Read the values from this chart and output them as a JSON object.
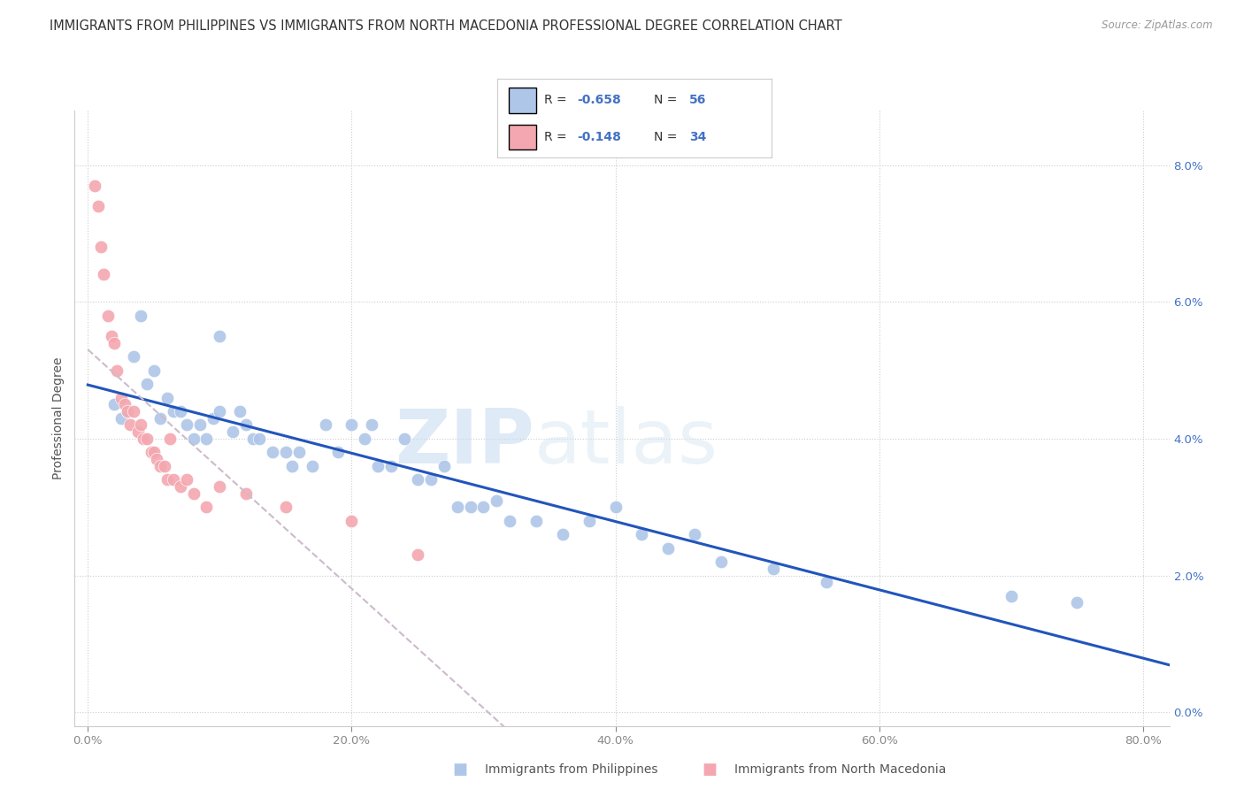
{
  "title": "IMMIGRANTS FROM PHILIPPINES VS IMMIGRANTS FROM NORTH MACEDONIA PROFESSIONAL DEGREE CORRELATION CHART",
  "source": "Source: ZipAtlas.com",
  "xlabel_labels": [
    "0.0%",
    "20.0%",
    "40.0%",
    "60.0%",
    "80.0%"
  ],
  "xlabel_values": [
    0.0,
    0.2,
    0.4,
    0.6,
    0.8
  ],
  "ylabel_labels": [
    "0.0%",
    "2.0%",
    "4.0%",
    "6.0%",
    "8.0%"
  ],
  "ylabel_values": [
    0.0,
    0.02,
    0.04,
    0.06,
    0.08
  ],
  "xlim": [
    -0.01,
    0.82
  ],
  "ylim": [
    -0.002,
    0.088
  ],
  "philippines_x": [
    0.02,
    0.025,
    0.03,
    0.035,
    0.04,
    0.045,
    0.05,
    0.055,
    0.06,
    0.065,
    0.07,
    0.075,
    0.08,
    0.085,
    0.09,
    0.095,
    0.1,
    0.1,
    0.11,
    0.115,
    0.12,
    0.125,
    0.13,
    0.14,
    0.15,
    0.155,
    0.16,
    0.17,
    0.18,
    0.19,
    0.2,
    0.21,
    0.215,
    0.22,
    0.23,
    0.24,
    0.25,
    0.26,
    0.27,
    0.28,
    0.29,
    0.3,
    0.31,
    0.32,
    0.34,
    0.36,
    0.38,
    0.4,
    0.42,
    0.44,
    0.46,
    0.48,
    0.52,
    0.56,
    0.7,
    0.75
  ],
  "philippines_y": [
    0.045,
    0.043,
    0.044,
    0.052,
    0.058,
    0.048,
    0.05,
    0.043,
    0.046,
    0.044,
    0.044,
    0.042,
    0.04,
    0.042,
    0.04,
    0.043,
    0.044,
    0.055,
    0.041,
    0.044,
    0.042,
    0.04,
    0.04,
    0.038,
    0.038,
    0.036,
    0.038,
    0.036,
    0.042,
    0.038,
    0.042,
    0.04,
    0.042,
    0.036,
    0.036,
    0.04,
    0.034,
    0.034,
    0.036,
    0.03,
    0.03,
    0.03,
    0.031,
    0.028,
    0.028,
    0.026,
    0.028,
    0.03,
    0.026,
    0.024,
    0.026,
    0.022,
    0.021,
    0.019,
    0.017,
    0.016
  ],
  "north_macedonia_x": [
    0.005,
    0.008,
    0.01,
    0.012,
    0.015,
    0.018,
    0.02,
    0.022,
    0.025,
    0.028,
    0.03,
    0.032,
    0.035,
    0.038,
    0.04,
    0.042,
    0.045,
    0.048,
    0.05,
    0.052,
    0.055,
    0.058,
    0.06,
    0.062,
    0.065,
    0.07,
    0.075,
    0.08,
    0.09,
    0.1,
    0.12,
    0.15,
    0.2,
    0.25
  ],
  "north_macedonia_y": [
    0.077,
    0.074,
    0.068,
    0.064,
    0.058,
    0.055,
    0.054,
    0.05,
    0.046,
    0.045,
    0.044,
    0.042,
    0.044,
    0.041,
    0.042,
    0.04,
    0.04,
    0.038,
    0.038,
    0.037,
    0.036,
    0.036,
    0.034,
    0.04,
    0.034,
    0.033,
    0.034,
    0.032,
    0.03,
    0.033,
    0.032,
    0.03,
    0.028,
    0.023
  ],
  "philippines_color": "#aec6e8",
  "north_macedonia_color": "#f4a7b0",
  "philippines_line_color": "#2255bb",
  "north_macedonia_line_color": "#ccbbcc",
  "watermark_zip": "ZIP",
  "watermark_atlas": "atlas",
  "background_color": "#ffffff",
  "grid_color": "#cccccc",
  "title_fontsize": 10.5,
  "axis_label_fontsize": 10,
  "tick_fontsize": 9.5,
  "legend_r1_R": "-0.658",
  "legend_r1_N": "56",
  "legend_r2_R": "-0.148",
  "legend_r2_N": "34",
  "bottom_label_1": "Immigrants from Philippines",
  "bottom_label_2": "Immigrants from North Macedonia"
}
